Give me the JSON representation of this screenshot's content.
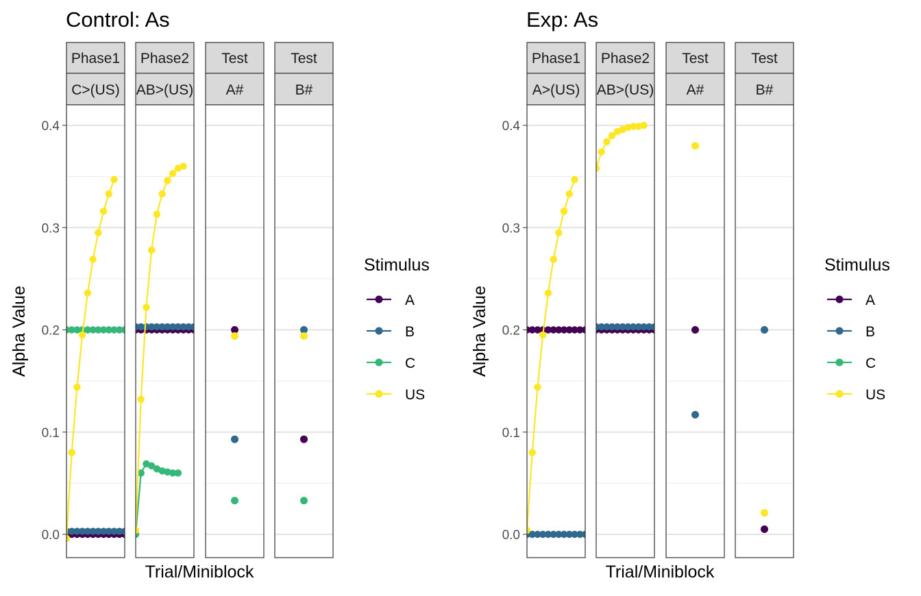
{
  "colors": {
    "A": "#440154",
    "B": "#31688E",
    "C": "#35B779",
    "US": "#FDE725"
  },
  "chart_data": [
    {
      "type": "line",
      "title": "Control: As",
      "xlabel": "Trial/Miniblock",
      "ylabel": "Alpha Value",
      "ylim": [
        0,
        0.4
      ],
      "yticks": [
        "0.0",
        "0.1",
        "0.2",
        "0.3",
        "0.4"
      ],
      "grid": true,
      "legend": {
        "title": "Stimulus",
        "position": "right",
        "items": [
          "A",
          "B",
          "C",
          "US"
        ]
      },
      "facets": [
        {
          "strip_top": "Phase1",
          "strip_bottom": "C>(US)",
          "series": [
            {
              "stimulus": "A",
              "type": "line",
              "values": [
                0.0,
                0.0,
                0.0,
                0.0,
                0.0,
                0.0,
                0.0,
                0.0,
                0.0,
                0.0,
                0.0,
                0.0
              ]
            },
            {
              "stimulus": "B",
              "type": "line",
              "values": [
                0.003,
                0.003,
                0.003,
                0.003,
                0.003,
                0.003,
                0.003,
                0.003,
                0.003,
                0.003,
                0.003,
                0.003
              ]
            },
            {
              "stimulus": "C",
              "type": "line",
              "values": [
                0.2,
                0.2,
                0.2,
                0.2,
                0.2,
                0.2,
                0.2,
                0.2,
                0.2,
                0.2,
                0.2,
                0.2
              ]
            },
            {
              "stimulus": "US",
              "type": "line",
              "values": [
                -0.004,
                0.08,
                0.144,
                0.195,
                0.236,
                0.269,
                0.295,
                0.316,
                0.333,
                0.347
              ]
            }
          ]
        },
        {
          "strip_top": "Phase2",
          "strip_bottom": "AB>(US)",
          "series": [
            {
              "stimulus": "A",
              "type": "line",
              "values": [
                0.2,
                0.2,
                0.2,
                0.2,
                0.2,
                0.2,
                0.2,
                0.2,
                0.2,
                0.2,
                0.2,
                0.2
              ]
            },
            {
              "stimulus": "B",
              "type": "line",
              "values": [
                0.203,
                0.203,
                0.203,
                0.203,
                0.203,
                0.203,
                0.203,
                0.203,
                0.203,
                0.203,
                0.203,
                0.203
              ]
            },
            {
              "stimulus": "C",
              "type": "line",
              "values": [
                0.0,
                0.06,
                0.069,
                0.067,
                0.064,
                0.062,
                0.061,
                0.06,
                0.06
              ]
            },
            {
              "stimulus": "US",
              "type": "line",
              "values": [
                0.004,
                0.132,
                0.222,
                0.278,
                0.313,
                0.333,
                0.346,
                0.353,
                0.358,
                0.36
              ]
            }
          ]
        },
        {
          "strip_top": "Test",
          "strip_bottom": "A#",
          "series": [
            {
              "stimulus": "A",
              "type": "point",
              "values": [
                0.2
              ]
            },
            {
              "stimulus": "B",
              "type": "point",
              "values": [
                0.093
              ]
            },
            {
              "stimulus": "C",
              "type": "point",
              "values": [
                0.033
              ]
            },
            {
              "stimulus": "US",
              "type": "point",
              "values": [
                0.194
              ]
            }
          ]
        },
        {
          "strip_top": "Test",
          "strip_bottom": "B#",
          "series": [
            {
              "stimulus": "A",
              "type": "point",
              "values": [
                0.093
              ]
            },
            {
              "stimulus": "B",
              "type": "point",
              "values": [
                0.2
              ]
            },
            {
              "stimulus": "C",
              "type": "point",
              "values": [
                0.033
              ]
            },
            {
              "stimulus": "US",
              "type": "point",
              "values": [
                0.194
              ]
            }
          ]
        }
      ]
    },
    {
      "type": "line",
      "title": "Exp: As",
      "xlabel": "Trial/Miniblock",
      "ylabel": "Alpha Value",
      "ylim": [
        0,
        0.4
      ],
      "yticks": [
        "0.0",
        "0.1",
        "0.2",
        "0.3",
        "0.4"
      ],
      "grid": true,
      "legend": {
        "title": "Stimulus",
        "position": "right",
        "items": [
          "A",
          "B",
          "C",
          "US"
        ]
      },
      "facets": [
        {
          "strip_top": "Phase1",
          "strip_bottom": "A>(US)",
          "series": [
            {
              "stimulus": "A",
              "type": "line",
              "values": [
                0.2,
                0.2,
                0.2,
                0.2,
                0.2,
                0.2,
                0.2,
                0.2,
                0.2,
                0.2,
                0.2,
                0.2
              ]
            },
            {
              "stimulus": "B",
              "type": "line",
              "values": [
                0.0,
                0.0,
                0.0,
                0.0,
                0.0,
                0.0,
                0.0,
                0.0,
                0.0,
                0.0,
                0.0,
                0.0
              ]
            },
            {
              "stimulus": "US",
              "type": "line",
              "values": [
                0.004,
                0.08,
                0.144,
                0.195,
                0.236,
                0.269,
                0.295,
                0.316,
                0.333,
                0.347
              ]
            }
          ]
        },
        {
          "strip_top": "Phase2",
          "strip_bottom": "AB>(US)",
          "series": [
            {
              "stimulus": "A",
              "type": "line",
              "values": [
                0.2,
                0.2,
                0.2,
                0.2,
                0.2,
                0.2,
                0.2,
                0.2,
                0.2,
                0.2,
                0.2,
                0.2
              ]
            },
            {
              "stimulus": "B",
              "type": "line",
              "values": [
                0.203,
                0.203,
                0.203,
                0.203,
                0.203,
                0.203,
                0.203,
                0.203,
                0.203,
                0.203,
                0.203,
                0.203
              ]
            },
            {
              "stimulus": "US",
              "type": "line",
              "values": [
                0.358,
                0.374,
                0.384,
                0.39,
                0.394,
                0.396,
                0.398,
                0.399,
                0.399,
                0.4
              ]
            }
          ]
        },
        {
          "strip_top": "Test",
          "strip_bottom": "A#",
          "series": [
            {
              "stimulus": "A",
              "type": "point",
              "values": [
                0.2
              ]
            },
            {
              "stimulus": "B",
              "type": "point",
              "values": [
                0.117
              ]
            },
            {
              "stimulus": "US",
              "type": "point",
              "values": [
                0.38
              ]
            }
          ]
        },
        {
          "strip_top": "Test",
          "strip_bottom": "B#",
          "series": [
            {
              "stimulus": "A",
              "type": "point",
              "values": [
                0.005
              ]
            },
            {
              "stimulus": "B",
              "type": "point",
              "values": [
                0.2
              ]
            },
            {
              "stimulus": "US",
              "type": "point",
              "values": [
                0.021
              ]
            }
          ]
        }
      ]
    }
  ]
}
